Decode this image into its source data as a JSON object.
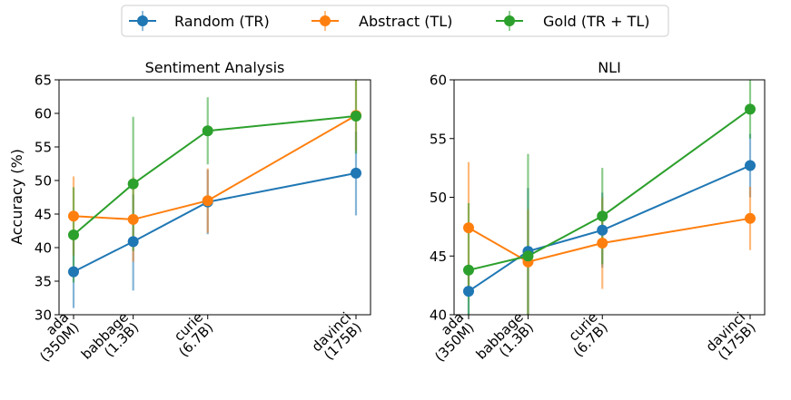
{
  "legend": {
    "items": [
      {
        "label": "Random (TR)",
        "color": "#1f77b4"
      },
      {
        "label": "Abstract (TL)",
        "color": "#ff7f0e"
      },
      {
        "label": "Gold (TR + TL)",
        "color": "#2ca02c"
      }
    ]
  },
  "chart_data": [
    {
      "type": "line",
      "title": "Sentiment Analysis",
      "xlabel": "",
      "ylabel": "Accuracy (%)",
      "categories": [
        "ada\n(350M)",
        "babbage\n(1.3B)",
        "curie\n(6.7B)",
        "davinci\n(175B)"
      ],
      "x": [
        0.35,
        1.3,
        6.7,
        175
      ],
      "xscale": "log",
      "ylim": [
        30,
        65
      ],
      "yticks": [
        30,
        35,
        40,
        45,
        50,
        55,
        60,
        65
      ],
      "series": [
        {
          "name": "Random (TR)",
          "values": [
            36.4,
            40.9,
            46.8,
            51.1
          ],
          "err_low": [
            31.0,
            33.6,
            42.0,
            44.8
          ],
          "err_high": [
            41.8,
            47.9,
            51.6,
            57.3
          ]
        },
        {
          "name": "Abstract (TL)",
          "values": [
            44.7,
            44.2,
            47.0,
            59.7
          ],
          "err_low": [
            38.8,
            37.9,
            42.2,
            54.4
          ],
          "err_high": [
            50.6,
            50.5,
            51.8,
            65.0
          ]
        },
        {
          "name": "Gold (TR + TL)",
          "values": [
            41.9,
            49.5,
            57.4,
            59.6
          ],
          "err_low": [
            34.8,
            39.5,
            52.4,
            54.0
          ],
          "err_high": [
            49.0,
            59.5,
            62.4,
            65.0
          ]
        }
      ]
    },
    {
      "type": "line",
      "title": "NLI",
      "xlabel": "",
      "ylabel": "",
      "categories": [
        "ada\n(350M)",
        "babbage\n(1.3B)",
        "curie\n(6.7B)",
        "davinci\n(175B)"
      ],
      "x": [
        0.35,
        1.3,
        6.7,
        175
      ],
      "xscale": "log",
      "ylim": [
        40,
        60
      ],
      "yticks": [
        40,
        45,
        50,
        55,
        60
      ],
      "series": [
        {
          "name": "Random (TR)",
          "values": [
            42.0,
            45.4,
            47.2,
            52.7
          ],
          "err_low": [
            40.0,
            40.0,
            44.0,
            50.0
          ],
          "err_high": [
            44.0,
            50.8,
            50.4,
            55.4
          ]
        },
        {
          "name": "Abstract (TL)",
          "values": [
            47.4,
            44.5,
            46.1,
            48.2
          ],
          "err_low": [
            41.8,
            40.0,
            42.2,
            45.5
          ],
          "err_high": [
            53.0,
            49.0,
            50.0,
            50.9
          ]
        },
        {
          "name": "Gold (TR + TL)",
          "values": [
            43.8,
            45.0,
            48.4,
            57.5
          ],
          "err_low": [
            40.0,
            40.0,
            44.3,
            55.0
          ],
          "err_high": [
            49.5,
            53.7,
            52.5,
            60.0
          ]
        }
      ]
    }
  ]
}
